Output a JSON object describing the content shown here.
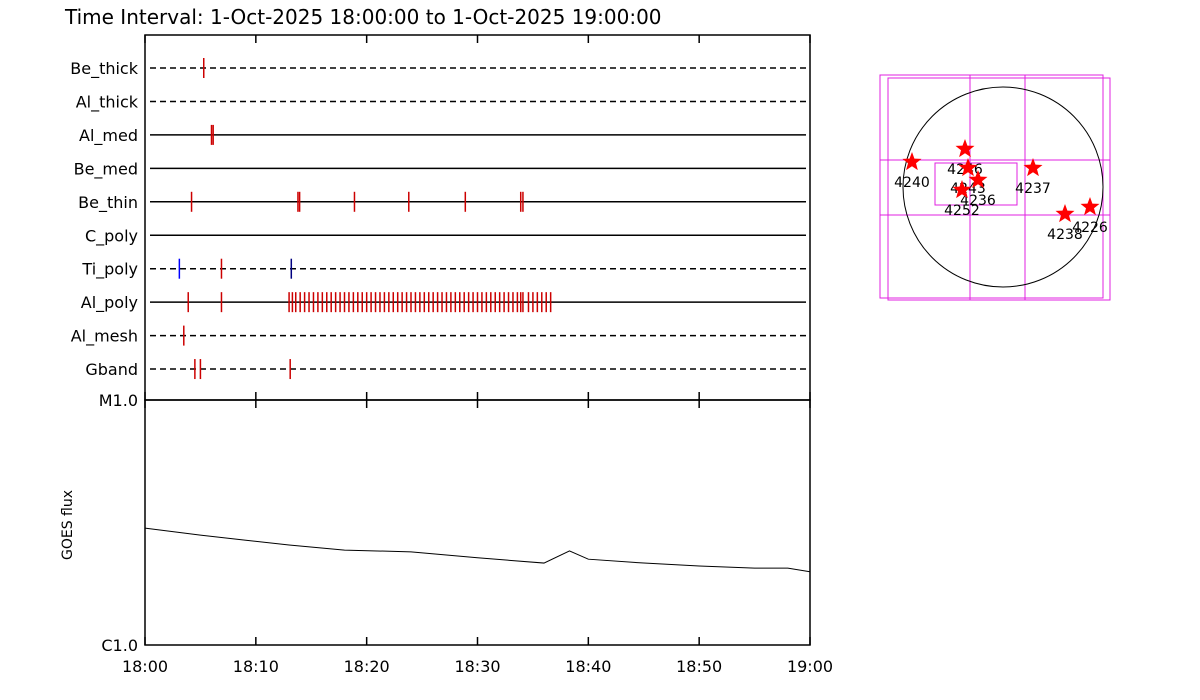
{
  "chart_data": [
    {
      "type": "timeline",
      "title": "Time Interval:  1-Oct-2025 18:00:00 to  1-Oct-2025 19:00:00",
      "xlim": [
        0,
        60
      ],
      "series": [
        {
          "name": "Be_thick",
          "dashed": true,
          "color": "#cc0000",
          "values": [
            5.3
          ]
        },
        {
          "name": "Al_thick",
          "dashed": true,
          "color": "#cc0000",
          "values": []
        },
        {
          "name": "Al_med",
          "dashed": false,
          "color": "#cc0000",
          "values": [
            6.0,
            6.15
          ]
        },
        {
          "name": "Be_med",
          "dashed": false,
          "color": "#cc0000",
          "values": []
        },
        {
          "name": "Be_thin",
          "dashed": false,
          "color": "#cc0000",
          "values": [
            4.2,
            13.8,
            13.95,
            18.9,
            23.8,
            28.9,
            33.9,
            34.1
          ]
        },
        {
          "name": "C_poly",
          "dashed": false,
          "color": "#cc0000",
          "values": []
        },
        {
          "name": "Ti_poly",
          "dashed": true,
          "color": "#cc0000",
          "colors": [
            "#0000ff",
            "#cc0000",
            "#000080"
          ],
          "values": [
            3.1,
            6.9,
            13.2
          ]
        },
        {
          "name": "Al_poly",
          "dashed": false,
          "color": "#cc0000",
          "values": [
            3.9,
            6.9,
            13.0,
            13.3,
            13.6,
            14.0,
            14.4,
            14.8,
            15.2,
            15.6,
            16.0,
            16.4,
            16.8,
            17.2,
            17.6,
            18.0,
            18.4,
            18.8,
            19.2,
            19.6,
            20.0,
            20.4,
            20.8,
            21.2,
            21.6,
            22.0,
            22.4,
            22.8,
            23.2,
            23.6,
            24.0,
            24.4,
            24.8,
            25.2,
            25.6,
            26.0,
            26.4,
            26.8,
            27.2,
            27.6,
            28.0,
            28.4,
            28.8,
            29.2,
            29.6,
            30.0,
            30.4,
            30.8,
            31.2,
            31.6,
            32.0,
            32.4,
            32.8,
            33.2,
            33.6,
            33.9,
            34.1,
            34.6,
            35.0,
            35.4,
            35.8,
            36.2,
            36.6
          ]
        },
        {
          "name": "Al_mesh",
          "dashed": true,
          "color": "#cc0000",
          "values": [
            3.5
          ]
        },
        {
          "name": "Gband",
          "dashed": true,
          "color": "#cc0000",
          "values": [
            4.5,
            5.0,
            13.1
          ]
        }
      ]
    },
    {
      "type": "line",
      "ylabel": "GOES flux",
      "color": "#000000",
      "log": true,
      "xlim": [
        0,
        60
      ],
      "ylim": [
        1e-06,
        1e-05
      ],
      "xticks": [
        {
          "value": 0,
          "label": "18:00"
        },
        {
          "value": 10,
          "label": "18:10"
        },
        {
          "value": 20,
          "label": "18:20"
        },
        {
          "value": 30,
          "label": "18:30"
        },
        {
          "value": 40,
          "label": "18:40"
        },
        {
          "value": 50,
          "label": "18:50"
        },
        {
          "value": 60,
          "label": "19:00"
        }
      ],
      "yticks": [
        {
          "value": 1e-05,
          "label": "M1.0"
        },
        {
          "value": 1e-06,
          "label": "C1.0"
        }
      ],
      "x": [
        0,
        5,
        9,
        13,
        18,
        24,
        30,
        36,
        38.3,
        40,
        45,
        50,
        55,
        58,
        60
      ],
      "values": [
        3e-06,
        2.81e-06,
        2.68e-06,
        2.56e-06,
        2.44e-06,
        2.4e-06,
        2.27e-06,
        2.16e-06,
        2.42e-06,
        2.24e-06,
        2.16e-06,
        2.1e-06,
        2.06e-06,
        2.06e-06,
        1.99e-06
      ]
    },
    {
      "type": "scatter",
      "marker": "star",
      "color": "#ff0000",
      "disk_radius": 960,
      "labels": [
        "4240",
        "4246",
        "4243",
        "4236",
        "4252",
        "4237",
        "4226",
        "4238"
      ],
      "x": [
        -874,
        -365,
        -336,
        -240,
        -394,
        288,
        835,
        595
      ],
      "values": [
        240,
        365,
        182,
        67,
        -29,
        182,
        -192,
        -259
      ]
    }
  ]
}
